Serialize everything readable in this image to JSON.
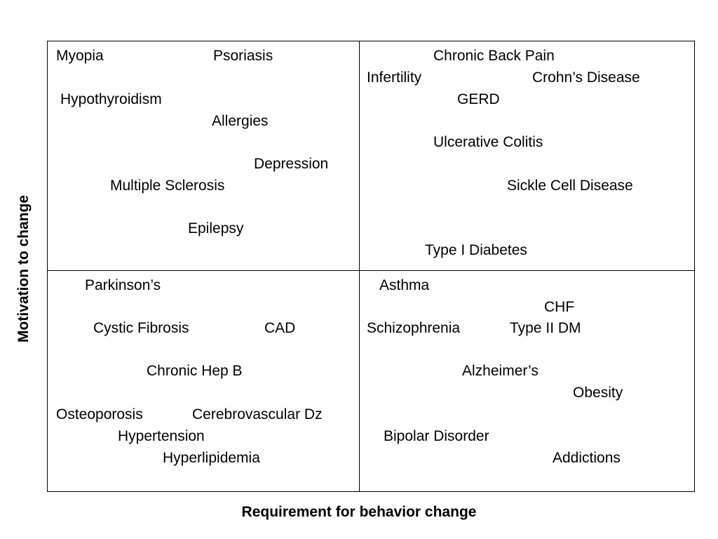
{
  "axes": {
    "x_label": "Requirement for behavior change",
    "y_label": "Motivation to change"
  },
  "quadrants": {
    "top_left": [
      "Myopia",
      "Psoriasis",
      "Hypothyroidism",
      "Allergies",
      "Depression",
      "Multiple Sclerosis",
      "Epilepsy"
    ],
    "top_right": [
      "Chronic Back Pain",
      "Infertility",
      "Crohn’s Disease",
      "GERD",
      "Ulcerative Colitis",
      "Sickle Cell Disease",
      "Type I Diabetes"
    ],
    "bottom_left": [
      "Parkinson’s",
      "Cystic Fibrosis",
      "CAD",
      "Chronic Hep B",
      "Osteoporosis",
      "Cerebrovascular Dz",
      "Hypertension",
      "Hyperlipidemia"
    ],
    "bottom_right": [
      "Asthma",
      "CHF",
      "Schizophrenia",
      "Type II DM",
      "Alzheimer’s",
      "Obesity",
      "Bipolar Disorder",
      "Addictions"
    ]
  }
}
